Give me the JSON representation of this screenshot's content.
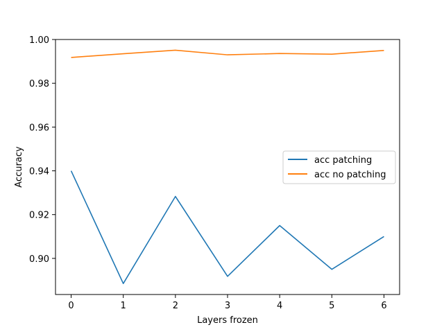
{
  "chart_data": {
    "type": "line",
    "title": "",
    "xlabel": "Layers frozen",
    "ylabel": "Accuracy",
    "x": [
      0,
      1,
      2,
      3,
      4,
      5,
      6
    ],
    "x_ticks": [
      "0",
      "1",
      "2",
      "3",
      "4",
      "5",
      "6"
    ],
    "y_ticks": [
      "0.90",
      "0.92",
      "0.94",
      "0.96",
      "0.98",
      "1.00"
    ],
    "y_tick_values": [
      0.9,
      0.92,
      0.94,
      0.96,
      0.98,
      1.0
    ],
    "xlim": [
      -0.3,
      6.3
    ],
    "ylim": [
      0.8835,
      1.0
    ],
    "grid": false,
    "legend_position": "center-right",
    "series": [
      {
        "name": "acc patching",
        "color": "#1f77b4",
        "values": [
          0.94,
          0.8885,
          0.9283,
          0.8918,
          0.915,
          0.895,
          0.91
        ]
      },
      {
        "name": "acc no patching",
        "color": "#ff7f0e",
        "values": [
          0.9918,
          0.9935,
          0.9951,
          0.993,
          0.9936,
          0.9933,
          0.995
        ]
      }
    ]
  }
}
